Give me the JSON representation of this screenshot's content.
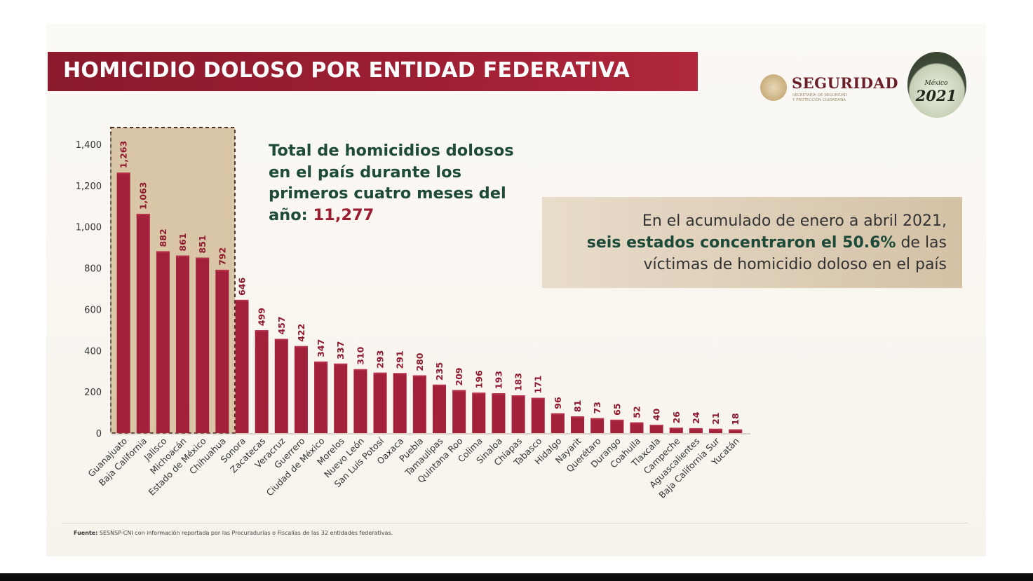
{
  "header": {
    "title": "HOMICIDIO DOLOSO POR ENTIDAD FEDERATIVA"
  },
  "logos": {
    "agency_name": "SEGURIDAD",
    "agency_subtitle_1": "SECRETARÍA DE SEGURIDAD",
    "agency_subtitle_2": "Y PROTECCIÓN CIUDADANA",
    "year_badge_label": "México",
    "year_badge_year": "2021"
  },
  "total_note": {
    "text": "Total de homicidios dolosos en el país durante los primeros cuatro meses del año:",
    "value": "11,277"
  },
  "summary": {
    "line1": "En el acumulado de enero a abril 2021,",
    "line2_highlight": "seis estados concentraron el 50.6%",
    "line2_rest": " de las",
    "line3": "víctimas de homicidio doloso en el país"
  },
  "source": {
    "label": "Fuente:",
    "text": " SESNSP-CNI con información reportada por las Procuradurías o Fiscalías de las 32 entidades federativas."
  },
  "colors": {
    "bar": "#a3213a",
    "bar_top": "#b63149",
    "value_label": "#8e1a2e",
    "highlight_fill": "#cdb58d",
    "highlight_border": "#4a2d22",
    "axis_text": "#333333"
  },
  "chart_data": {
    "type": "bar",
    "categories": [
      "Guanajuato",
      "Baja California",
      "Jalisco",
      "Michoacán",
      "Estado de México",
      "Chihuahua",
      "Sonora",
      "Zacatecas",
      "Veracruz",
      "Guerrero",
      "Ciudad de México",
      "Morelos",
      "Nuevo León",
      "San Luis Potosí",
      "Oaxaca",
      "Puebla",
      "Tamaulipas",
      "Quintana Roo",
      "Colima",
      "Sinaloa",
      "Chiapas",
      "Tabasco",
      "Hidalgo",
      "Nayarit",
      "Querétaro",
      "Durango",
      "Coahuila",
      "Tlaxcala",
      "Campeche",
      "Aguascalientes",
      "Baja California Sur",
      "Yucatán"
    ],
    "values": [
      1263,
      1063,
      882,
      861,
      851,
      792,
      646,
      499,
      457,
      422,
      347,
      337,
      310,
      293,
      291,
      280,
      235,
      209,
      196,
      193,
      183,
      171,
      96,
      81,
      73,
      65,
      52,
      40,
      26,
      24,
      21,
      18
    ],
    "value_labels": [
      "1,263",
      "1,063",
      "882",
      "861",
      "851",
      "792",
      "646",
      "499",
      "457",
      "422",
      "347",
      "337",
      "310",
      "293",
      "291",
      "280",
      "235",
      "209",
      "196",
      "193",
      "183",
      "171",
      "96",
      "81",
      "73",
      "65",
      "52",
      "40",
      "26",
      "24",
      "21",
      "18"
    ],
    "yticks": [
      "0",
      "200",
      "400",
      "600",
      "800",
      "1,000",
      "1,200",
      "1,400"
    ],
    "ylim": [
      0,
      1400
    ],
    "highlighted_count": 6,
    "title": "",
    "xlabel": "",
    "ylabel": ""
  }
}
